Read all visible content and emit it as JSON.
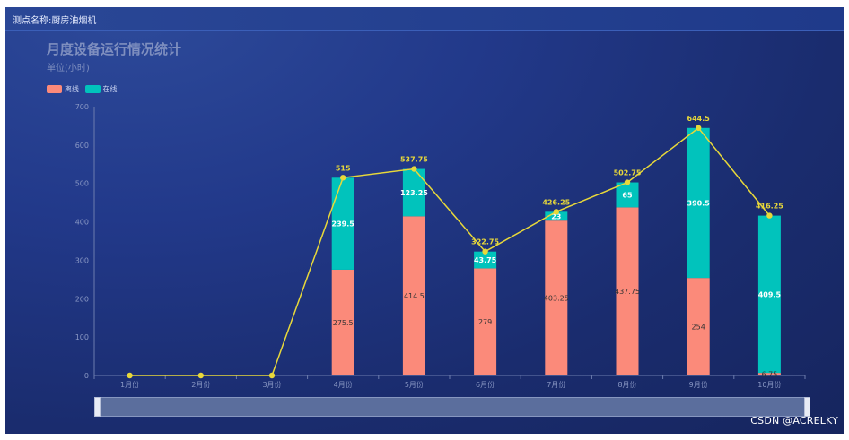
{
  "header": {
    "station_label": "测点名称:厨房油烟机"
  },
  "watermark": "CSDN @ACRELKY",
  "colors": {
    "offline": "#fb8a7a",
    "online": "#01c3bc",
    "line": "#e8d83a"
  },
  "chart_data": {
    "type": "bar",
    "title": "月度设备运行情况统计",
    "subtitle": "单位(小时)",
    "categories": [
      "1月份",
      "2月份",
      "3月份",
      "4月份",
      "5月份",
      "6月份",
      "7月份",
      "8月份",
      "9月份",
      "10月份"
    ],
    "series": [
      {
        "name": "离线",
        "stack": true,
        "values": [
          0,
          0,
          0,
          275.5,
          414.5,
          279,
          403.25,
          437.75,
          254,
          6.75
        ],
        "labels": [
          "",
          "",
          "",
          "275.5",
          "414.5",
          "279",
          "403.25",
          "437.75",
          "254",
          "6.75"
        ]
      },
      {
        "name": "在线",
        "stack": true,
        "values": [
          0,
          0,
          0,
          239.5,
          123.25,
          43.75,
          23,
          65,
          390.5,
          409.5
        ],
        "labels": [
          "",
          "",
          "",
          "239.5",
          "123.25",
          "43.75",
          "23",
          "65",
          "390.5",
          "409.5"
        ]
      },
      {
        "type": "line",
        "values": [
          0,
          0,
          0,
          515,
          537.75,
          322.75,
          426.25,
          502.75,
          644.5,
          416.25
        ],
        "labels": [
          "",
          "",
          "",
          "515",
          "537.75",
          "322.75",
          "426.25",
          "502.75",
          "644.5",
          "416.25"
        ]
      }
    ],
    "ylim": [
      0,
      700
    ],
    "yticks": [
      0,
      100,
      200,
      300,
      400,
      500,
      600,
      700
    ],
    "legend_position": "top-left",
    "grid": false
  }
}
